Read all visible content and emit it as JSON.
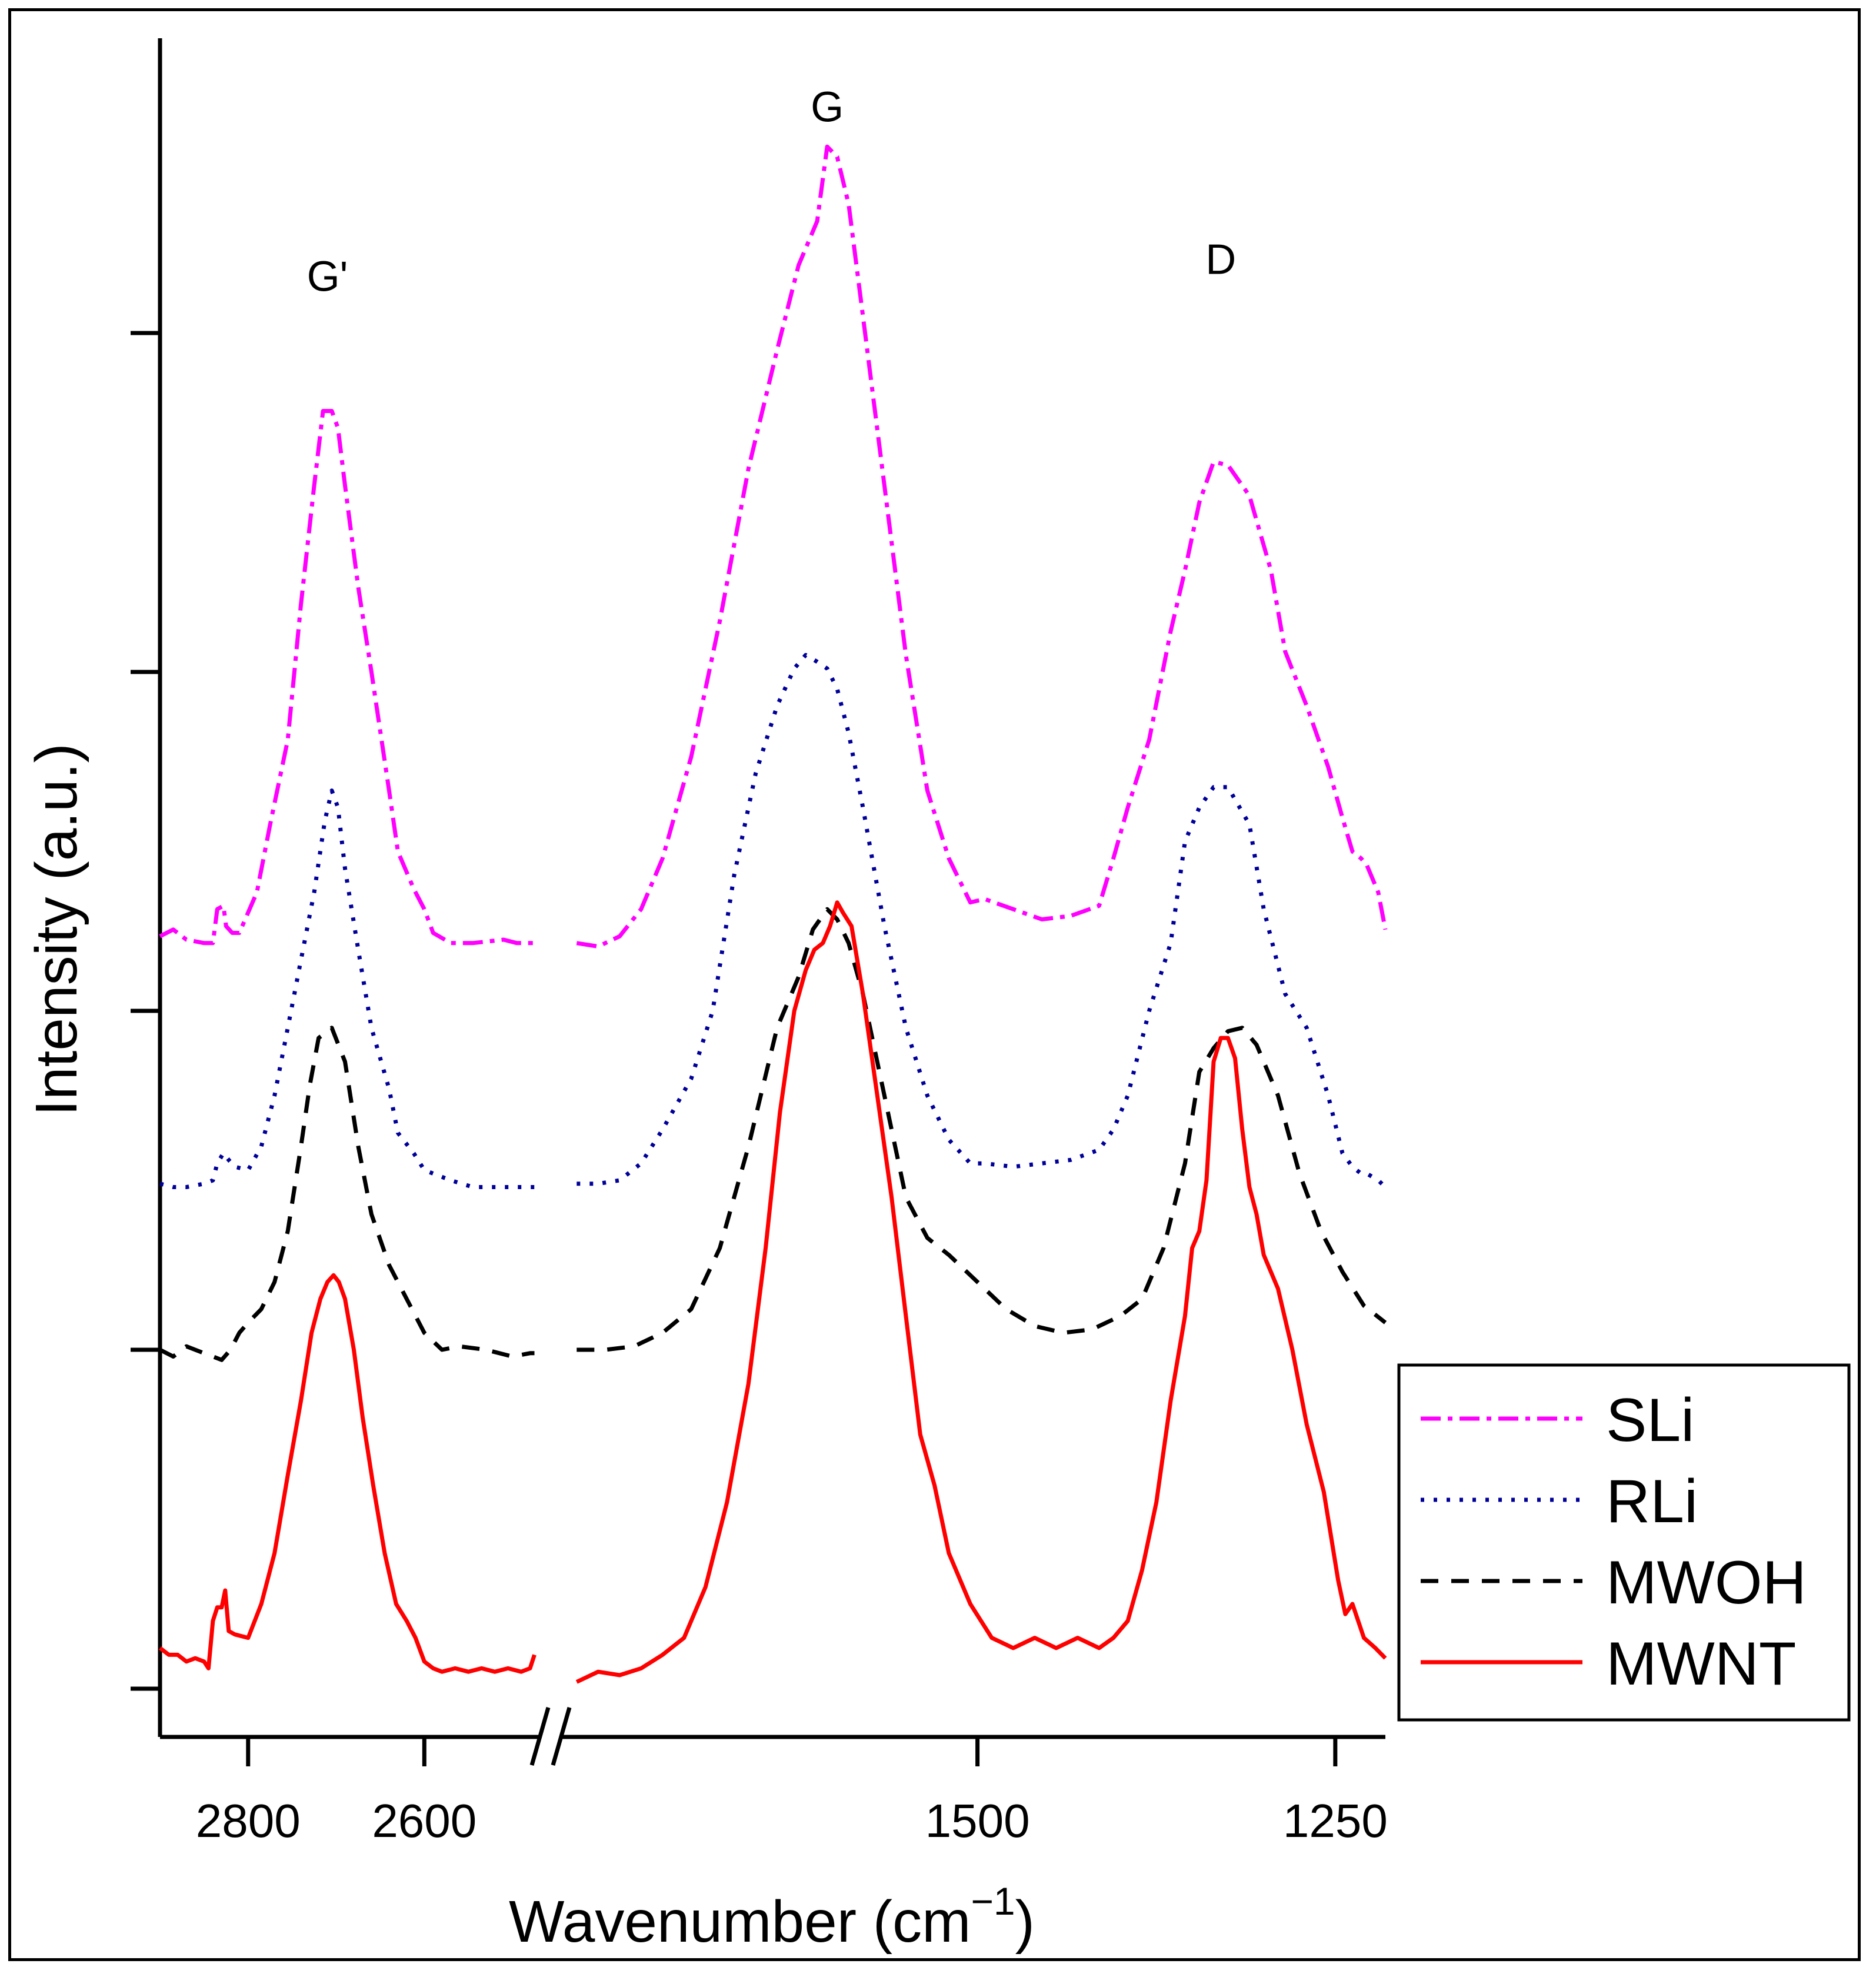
{
  "chart_data": {
    "type": "line",
    "title": "",
    "xlabel": "Wavenumber (cm",
    "xlabel_sup": "−1",
    "xlabel_close": ")",
    "ylabel": "Intensity (a.u.)",
    "y_ticks_labeled": false,
    "x_axis": {
      "broken": true,
      "break_mark": "//",
      "segments": [
        {
          "range": [
            2900,
            2470
          ],
          "reversed": true,
          "ticks": [
            2800,
            2600
          ]
        },
        {
          "range": [
            1790,
            1215
          ],
          "reversed": true,
          "ticks": [
            1500,
            1250
          ]
        }
      ],
      "tick_labels": [
        "2800",
        "2600",
        "1500",
        "1250"
      ]
    },
    "ylim": [
      0,
      4.5
    ],
    "annotations": [
      {
        "text": "G'",
        "x": 2710,
        "segment": 0,
        "y": 4.1
      },
      {
        "text": "G",
        "x": 1605,
        "segment": 1,
        "y": 4.6
      },
      {
        "text": "D",
        "x": 1330,
        "segment": 1,
        "y": 4.15
      }
    ],
    "legend": {
      "position": "bottom-right",
      "entries": [
        "SLi",
        "RLi",
        "MWOH",
        "MWNT"
      ]
    },
    "series": [
      {
        "name": "SLi",
        "color": "#ff00ff",
        "style": "dash-dot",
        "x1": [
          2900,
          2885,
          2870,
          2850,
          2840,
          2835,
          2828,
          2825,
          2818,
          2810,
          2790,
          2775,
          2755,
          2740,
          2725,
          2715,
          2705,
          2698,
          2690,
          2675,
          2660,
          2640,
          2630,
          2612,
          2600,
          2590,
          2570,
          2545,
          2510,
          2495,
          2480,
          2475
        ],
        "y1": [
          2.22,
          2.24,
          2.21,
          2.2,
          2.2,
          2.3,
          2.31,
          2.25,
          2.23,
          2.23,
          2.35,
          2.55,
          2.8,
          3.2,
          3.55,
          3.77,
          3.77,
          3.72,
          3.55,
          3.25,
          3.0,
          2.65,
          2.47,
          2.36,
          2.3,
          2.23,
          2.2,
          2.2,
          2.21,
          2.2,
          2.2,
          2.2
        ],
        "x2": [
          1780,
          1765,
          1750,
          1735,
          1720,
          1700,
          1680,
          1660,
          1640,
          1625,
          1612,
          1605,
          1598,
          1590,
          1580,
          1565,
          1550,
          1535,
          1520,
          1505,
          1495,
          1475,
          1455,
          1435,
          1415,
          1405,
          1395,
          1380,
          1365,
          1355,
          1345,
          1335,
          1325,
          1310,
          1295,
          1285,
          1270,
          1255,
          1245,
          1238,
          1232,
          1228,
          1220,
          1215
        ],
        "y2": [
          2.2,
          2.19,
          2.22,
          2.3,
          2.45,
          2.75,
          3.15,
          3.6,
          3.95,
          4.2,
          4.33,
          4.55,
          4.52,
          4.38,
          4.05,
          3.55,
          3.05,
          2.65,
          2.45,
          2.32,
          2.33,
          2.3,
          2.27,
          2.28,
          2.31,
          2.45,
          2.6,
          2.8,
          3.12,
          3.3,
          3.5,
          3.62,
          3.61,
          3.52,
          3.3,
          3.06,
          2.9,
          2.72,
          2.57,
          2.47,
          2.45,
          2.43,
          2.35,
          2.24
        ],
        "mark_names": [
          "SLi-curve-a",
          "SLi-curve-b"
        ]
      },
      {
        "name": "RLi",
        "color": "#000099",
        "style": "dotted",
        "x1": [
          2900,
          2885,
          2870,
          2850,
          2840,
          2835,
          2828,
          2822,
          2815,
          2800,
          2785,
          2770,
          2755,
          2740,
          2725,
          2713,
          2705,
          2698,
          2690,
          2675,
          2660,
          2640,
          2630,
          2612,
          2600,
          2590,
          2570,
          2545,
          2510,
          2495,
          2480,
          2475
        ],
        "y1": [
          1.49,
          1.48,
          1.48,
          1.49,
          1.5,
          1.55,
          1.58,
          1.56,
          1.54,
          1.53,
          1.6,
          1.75,
          1.95,
          2.15,
          2.35,
          2.56,
          2.65,
          2.6,
          2.42,
          2.18,
          1.95,
          1.77,
          1.64,
          1.58,
          1.53,
          1.52,
          1.5,
          1.48,
          1.48,
          1.48,
          1.48,
          1.48
        ],
        "x2": [
          1780,
          1765,
          1750,
          1735,
          1720,
          1700,
          1685,
          1670,
          1655,
          1640,
          1628,
          1620,
          1612,
          1605,
          1598,
          1590,
          1580,
          1565,
          1550,
          1535,
          1520,
          1505,
          1495,
          1475,
          1455,
          1435,
          1415,
          1405,
          1395,
          1380,
          1365,
          1355,
          1345,
          1335,
          1325,
          1310,
          1300,
          1285,
          1270,
          1255,
          1245,
          1238,
          1232,
          1228,
          1220,
          1215
        ],
        "y2": [
          1.49,
          1.49,
          1.5,
          1.55,
          1.65,
          1.8,
          2.0,
          2.4,
          2.7,
          2.9,
          3.01,
          3.05,
          3.03,
          3.01,
          2.95,
          2.82,
          2.6,
          2.25,
          1.95,
          1.75,
          1.62,
          1.55,
          1.55,
          1.54,
          1.55,
          1.56,
          1.59,
          1.65,
          1.75,
          2.0,
          2.2,
          2.5,
          2.6,
          2.66,
          2.66,
          2.55,
          2.3,
          2.05,
          1.95,
          1.75,
          1.58,
          1.54,
          1.52,
          1.52,
          1.5,
          1.48
        ],
        "mark_names": [
          "RLi-curve-a",
          "RLi-curve-b"
        ]
      },
      {
        "name": "MWOH",
        "color": "#000000",
        "style": "dashed",
        "x1": [
          2900,
          2885,
          2870,
          2850,
          2840,
          2830,
          2820,
          2810,
          2800,
          2785,
          2770,
          2755,
          2740,
          2730,
          2720,
          2705,
          2690,
          2675,
          2660,
          2640,
          2620,
          2600,
          2580,
          2560,
          2530,
          2500,
          2480,
          2475
        ],
        "y1": [
          1.0,
          0.98,
          1.01,
          0.99,
          0.98,
          0.97,
          1.0,
          1.05,
          1.08,
          1.12,
          1.2,
          1.35,
          1.6,
          1.78,
          1.92,
          1.95,
          1.85,
          1.6,
          1.4,
          1.25,
          1.15,
          1.05,
          1.0,
          1.01,
          1.0,
          0.98,
          0.99,
          0.99
        ],
        "x2": [
          1780,
          1760,
          1740,
          1720,
          1700,
          1680,
          1660,
          1640,
          1625,
          1615,
          1605,
          1598,
          1590,
          1580,
          1565,
          1550,
          1535,
          1520,
          1500,
          1480,
          1460,
          1440,
          1420,
          1400,
          1385,
          1370,
          1355,
          1345,
          1335,
          1325,
          1315,
          1305,
          1290,
          1275,
          1260,
          1245,
          1230,
          1215
        ],
        "y2": [
          1.0,
          1.0,
          1.01,
          1.05,
          1.12,
          1.3,
          1.6,
          1.95,
          2.1,
          2.24,
          2.3,
          2.27,
          2.2,
          2.05,
          1.75,
          1.45,
          1.33,
          1.28,
          1.2,
          1.12,
          1.07,
          1.05,
          1.06,
          1.1,
          1.15,
          1.3,
          1.55,
          1.82,
          1.89,
          1.94,
          1.95,
          1.9,
          1.75,
          1.52,
          1.35,
          1.23,
          1.13,
          1.08
        ],
        "mark_names": [
          "MWOH-curve-a",
          "MWOH-curve-b"
        ]
      },
      {
        "name": "MWNT",
        "color": "#ff0000",
        "style": "solid",
        "x1": [
          2900,
          2890,
          2880,
          2870,
          2860,
          2850,
          2845,
          2840,
          2835,
          2830,
          2826,
          2822,
          2815,
          2800,
          2785,
          2770,
          2755,
          2740,
          2728,
          2718,
          2710,
          2703,
          2697,
          2690,
          2680,
          2670,
          2658,
          2645,
          2632,
          2620,
          2610,
          2600,
          2590,
          2580,
          2565,
          2550,
          2535,
          2520,
          2505,
          2490,
          2480,
          2475
        ],
        "y1": [
          0.12,
          0.1,
          0.1,
          0.08,
          0.09,
          0.08,
          0.06,
          0.2,
          0.24,
          0.24,
          0.29,
          0.17,
          0.16,
          0.15,
          0.25,
          0.4,
          0.63,
          0.85,
          1.05,
          1.15,
          1.2,
          1.22,
          1.2,
          1.15,
          1.0,
          0.8,
          0.6,
          0.4,
          0.25,
          0.2,
          0.15,
          0.08,
          0.06,
          0.05,
          0.06,
          0.05,
          0.06,
          0.05,
          0.06,
          0.05,
          0.06,
          0.1
        ],
        "x2": [
          1780,
          1765,
          1750,
          1735,
          1720,
          1705,
          1690,
          1675,
          1660,
          1648,
          1638,
          1628,
          1620,
          1614,
          1608,
          1603,
          1598,
          1594,
          1588,
          1580,
          1570,
          1560,
          1550,
          1540,
          1530,
          1520,
          1505,
          1490,
          1475,
          1460,
          1445,
          1430,
          1415,
          1405,
          1395,
          1385,
          1375,
          1365,
          1355,
          1350,
          1345,
          1340,
          1335,
          1330,
          1325,
          1320,
          1315,
          1310,
          1305,
          1300,
          1290,
          1280,
          1270,
          1258,
          1248,
          1243,
          1238,
          1230,
          1222,
          1215
        ],
        "y2": [
          0.02,
          0.05,
          0.04,
          0.06,
          0.1,
          0.15,
          0.3,
          0.55,
          0.9,
          1.3,
          1.7,
          2.0,
          2.12,
          2.18,
          2.2,
          2.25,
          2.32,
          2.29,
          2.25,
          2.05,
          1.75,
          1.45,
          1.1,
          0.75,
          0.6,
          0.4,
          0.25,
          0.15,
          0.12,
          0.15,
          0.12,
          0.15,
          0.12,
          0.15,
          0.2,
          0.35,
          0.55,
          0.85,
          1.1,
          1.3,
          1.35,
          1.5,
          1.85,
          1.92,
          1.92,
          1.86,
          1.65,
          1.48,
          1.4,
          1.28,
          1.18,
          1.0,
          0.78,
          0.58,
          0.32,
          0.22,
          0.25,
          0.15,
          0.12,
          0.09
        ],
        "mark_names": [
          "MWNT-curve-a",
          "MWNT-curve-b"
        ]
      }
    ]
  }
}
